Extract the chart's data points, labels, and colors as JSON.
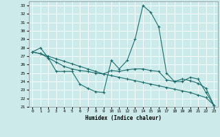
{
  "xlabel": "Humidex (Indice chaleur)",
  "bg_color": "#cceaea",
  "grid_color": "#ffffff",
  "line_color": "#1a6b6b",
  "xlim": [
    -0.5,
    23.5
  ],
  "ylim": [
    21,
    33.5
  ],
  "yticks": [
    21,
    22,
    23,
    24,
    25,
    26,
    27,
    28,
    29,
    30,
    31,
    32,
    33
  ],
  "xticks": [
    0,
    1,
    2,
    3,
    4,
    5,
    6,
    7,
    8,
    9,
    10,
    11,
    12,
    13,
    14,
    15,
    16,
    17,
    18,
    19,
    20,
    21,
    22,
    23
  ],
  "line1_x": [
    0,
    1,
    2,
    3,
    4,
    5,
    6,
    7,
    8,
    9,
    10,
    11,
    12,
    13,
    14,
    15,
    16,
    17,
    18,
    19,
    20,
    21,
    22,
    23
  ],
  "line1_y": [
    27.5,
    28.0,
    26.8,
    25.2,
    25.2,
    25.2,
    23.7,
    23.2,
    22.8,
    22.7,
    26.5,
    25.5,
    26.5,
    29.0,
    33.0,
    32.2,
    30.5,
    25.0,
    24.0,
    24.0,
    24.5,
    24.3,
    22.7,
    21.2
  ],
  "line2_x": [
    0,
    1,
    2,
    3,
    4,
    5,
    6,
    7,
    8,
    9,
    10,
    11,
    12,
    13,
    14,
    15,
    16,
    17,
    18,
    19,
    20,
    21,
    22,
    23
  ],
  "line2_y": [
    27.5,
    27.3,
    26.8,
    26.3,
    25.8,
    25.5,
    25.3,
    25.2,
    25.0,
    24.9,
    25.3,
    25.2,
    25.4,
    25.5,
    25.5,
    25.3,
    25.2,
    24.2,
    24.0,
    24.3,
    24.1,
    23.8,
    23.2,
    21.2
  ],
  "line3_x": [
    0,
    1,
    2,
    3,
    4,
    5,
    6,
    7,
    8,
    9,
    10,
    11,
    12,
    13,
    14,
    15,
    16,
    17,
    18,
    19,
    20,
    21,
    22,
    23
  ],
  "line3_y": [
    27.5,
    27.3,
    27.0,
    26.7,
    26.4,
    26.1,
    25.8,
    25.5,
    25.2,
    24.9,
    24.7,
    24.5,
    24.3,
    24.1,
    23.9,
    23.7,
    23.5,
    23.3,
    23.1,
    22.9,
    22.7,
    22.4,
    22.1,
    21.2
  ]
}
